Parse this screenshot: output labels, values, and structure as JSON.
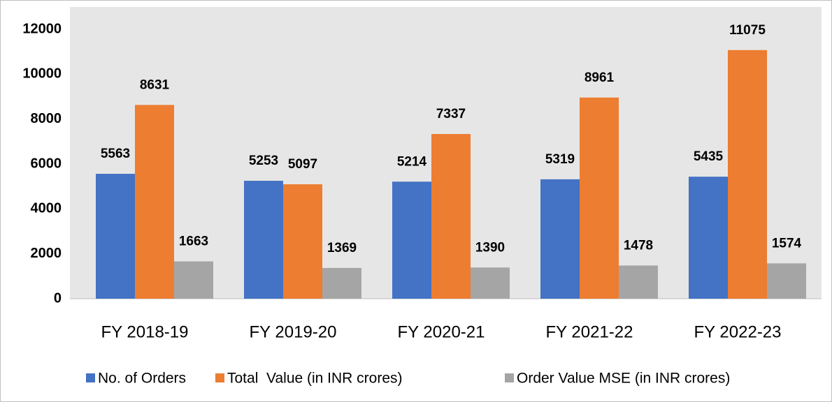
{
  "chart_data": {
    "type": "bar",
    "categories": [
      "FY 2018-19",
      "FY 2019-20",
      "FY 2020-21",
      "FY 2021-22",
      "FY 2022-23"
    ],
    "series": [
      {
        "name": "No. of Orders",
        "color": "#4472c4",
        "values": [
          5563,
          5253,
          5214,
          5319,
          5435
        ]
      },
      {
        "name": "Total  Value (in INR crores)",
        "color": "#ed7d31",
        "values": [
          8631,
          5097,
          7337,
          8961,
          11075
        ]
      },
      {
        "name": "Order Value MSE (in INR crores)",
        "color": "#a5a5a5",
        "values": [
          1663,
          1369,
          1390,
          1478,
          1574
        ]
      }
    ],
    "ylim": [
      0,
      12000
    ],
    "yticks": [
      0,
      2000,
      4000,
      6000,
      8000,
      10000,
      12000
    ],
    "grid": false,
    "legend": "bottom",
    "data_labels": true
  }
}
